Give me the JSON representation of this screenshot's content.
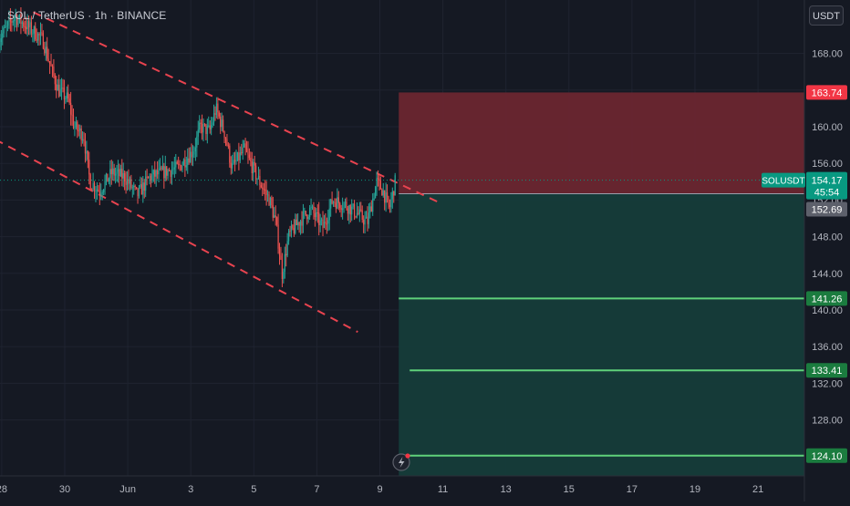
{
  "header": {
    "base": "SOL",
    "separator": " / ",
    "quote": "TetherUS",
    "dot": " · ",
    "interval": "1h",
    "exchange": "BINANCE"
  },
  "currency_button": "USDT",
  "countdown": "45:54",
  "colors": {
    "background": "#151923",
    "candle_up": "#26a69a",
    "candle_down": "#ef5350",
    "stop_zone": "#6a2630",
    "target_zone": "#153c3a",
    "trendline": "#e8434f",
    "target_line": "#5fd17a",
    "last_price_tag": "#089981",
    "stop_tag": "#f23645",
    "target_tag": "#1b7c3f",
    "entry_tag": "#5d606b"
  },
  "chart_data": {
    "type": "candlestick",
    "symbol": "SOLUSDT",
    "y_ticks": [
      168.0,
      164.0,
      160.0,
      156.0,
      152.0,
      148.0,
      144.0,
      140.0,
      136.0,
      132.0,
      128.0
    ],
    "ylim": [
      122.0,
      172.0
    ],
    "x_ticks": [
      {
        "label": "28",
        "day": 28
      },
      {
        "label": "30",
        "day": 30
      },
      {
        "label": "Jun",
        "day": 32
      },
      {
        "label": "3",
        "day": 34
      },
      {
        "label": "5",
        "day": 36
      },
      {
        "label": "7",
        "day": 38
      },
      {
        "label": "9",
        "day": 40
      },
      {
        "label": "11",
        "day": 42
      },
      {
        "label": "13",
        "day": 44
      },
      {
        "label": "15",
        "day": 46
      },
      {
        "label": "17",
        "day": 48
      },
      {
        "label": "19",
        "day": 50
      },
      {
        "label": "21",
        "day": 52
      }
    ],
    "last_price": 154.17,
    "last_price_label": "SOLUSDT",
    "position": {
      "entry": 152.69,
      "stop": 163.74,
      "targets": [
        141.26,
        133.41,
        124.1
      ],
      "start_day": 40.6
    },
    "trend_channel": [
      {
        "d1": 29.0,
        "p1": 172.5,
        "d2": 41.9,
        "p2": 151.7,
        "style": "dashed"
      },
      {
        "d1": 27.8,
        "p1": 158.6,
        "d2": 39.3,
        "p2": 137.6,
        "style": "dashed"
      }
    ],
    "price_path": [
      {
        "d": 27.9,
        "p": 169.5
      },
      {
        "d": 28.4,
        "p": 172.0
      },
      {
        "d": 28.8,
        "p": 171.0
      },
      {
        "d": 29.3,
        "p": 169.5
      },
      {
        "d": 29.6,
        "p": 166.0
      },
      {
        "d": 29.8,
        "p": 164.0
      },
      {
        "d": 30.1,
        "p": 163.0
      },
      {
        "d": 30.3,
        "p": 160.0
      },
      {
        "d": 30.6,
        "p": 159.0
      },
      {
        "d": 30.8,
        "p": 154.0
      },
      {
        "d": 31.1,
        "p": 153.0
      },
      {
        "d": 31.5,
        "p": 155.0
      },
      {
        "d": 31.9,
        "p": 154.5
      },
      {
        "d": 32.3,
        "p": 152.5
      },
      {
        "d": 32.7,
        "p": 154.5
      },
      {
        "d": 33.1,
        "p": 155.0
      },
      {
        "d": 33.6,
        "p": 155.5
      },
      {
        "d": 34.1,
        "p": 157.5
      },
      {
        "d": 34.3,
        "p": 160.0
      },
      {
        "d": 34.6,
        "p": 159.5
      },
      {
        "d": 34.8,
        "p": 162.0
      },
      {
        "d": 35.1,
        "p": 159.0
      },
      {
        "d": 35.3,
        "p": 155.5
      },
      {
        "d": 35.7,
        "p": 157.5
      },
      {
        "d": 36.1,
        "p": 154.5
      },
      {
        "d": 36.5,
        "p": 152.0
      },
      {
        "d": 36.7,
        "p": 149.5
      },
      {
        "d": 36.9,
        "p": 144.0
      },
      {
        "d": 37.1,
        "p": 148.0
      },
      {
        "d": 37.4,
        "p": 149.5
      },
      {
        "d": 37.8,
        "p": 151.0
      },
      {
        "d": 38.2,
        "p": 149.0
      },
      {
        "d": 38.5,
        "p": 152.0
      },
      {
        "d": 38.9,
        "p": 151.5
      },
      {
        "d": 39.3,
        "p": 150.5
      },
      {
        "d": 39.6,
        "p": 149.5
      },
      {
        "d": 39.9,
        "p": 154.0
      },
      {
        "d": 40.1,
        "p": 153.0
      },
      {
        "d": 40.3,
        "p": 151.0
      },
      {
        "d": 40.5,
        "p": 154.2
      }
    ]
  }
}
